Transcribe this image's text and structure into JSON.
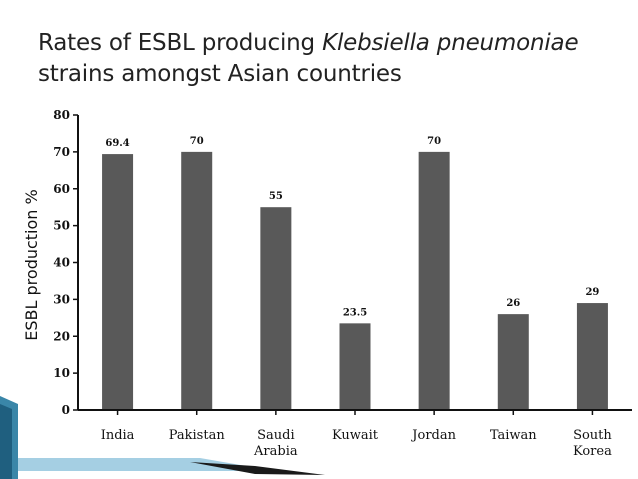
{
  "slide": {
    "title_part1": "Rates of ESBL producing ",
    "title_italic": "Klebsiella pneumoniae",
    "title_part2": "strains amongst Asian countries"
  },
  "chart_data": {
    "type": "bar",
    "title": "Rates of ESBL producing Klebsiella pneumoniae strains amongst Asian countries",
    "xlabel": "",
    "ylabel": "ESBL production %",
    "ylim": [
      0,
      80
    ],
    "yticks": [
      "0",
      "10",
      "20",
      "30",
      "40",
      "50",
      "60",
      "70",
      "80"
    ],
    "categories": [
      [
        "India"
      ],
      [
        "Pakistan"
      ],
      [
        "Saudi",
        "Arabia"
      ],
      [
        "Kuwait"
      ],
      [
        "Jordan"
      ],
      [
        "Taiwan"
      ],
      [
        "South",
        "Korea"
      ]
    ],
    "values": [
      69.4,
      70,
      55,
      23.5,
      70,
      26,
      29
    ],
    "data_labels": [
      "69.4",
      "70",
      "55",
      "23.5",
      "70",
      "26",
      "29"
    ],
    "bar_color": "#595959",
    "grid": false,
    "legend": "none"
  },
  "colors": {
    "accent": "#2f6f8f",
    "accent_light": "#6aa6c4",
    "dark_band": "#1a1a1a"
  }
}
